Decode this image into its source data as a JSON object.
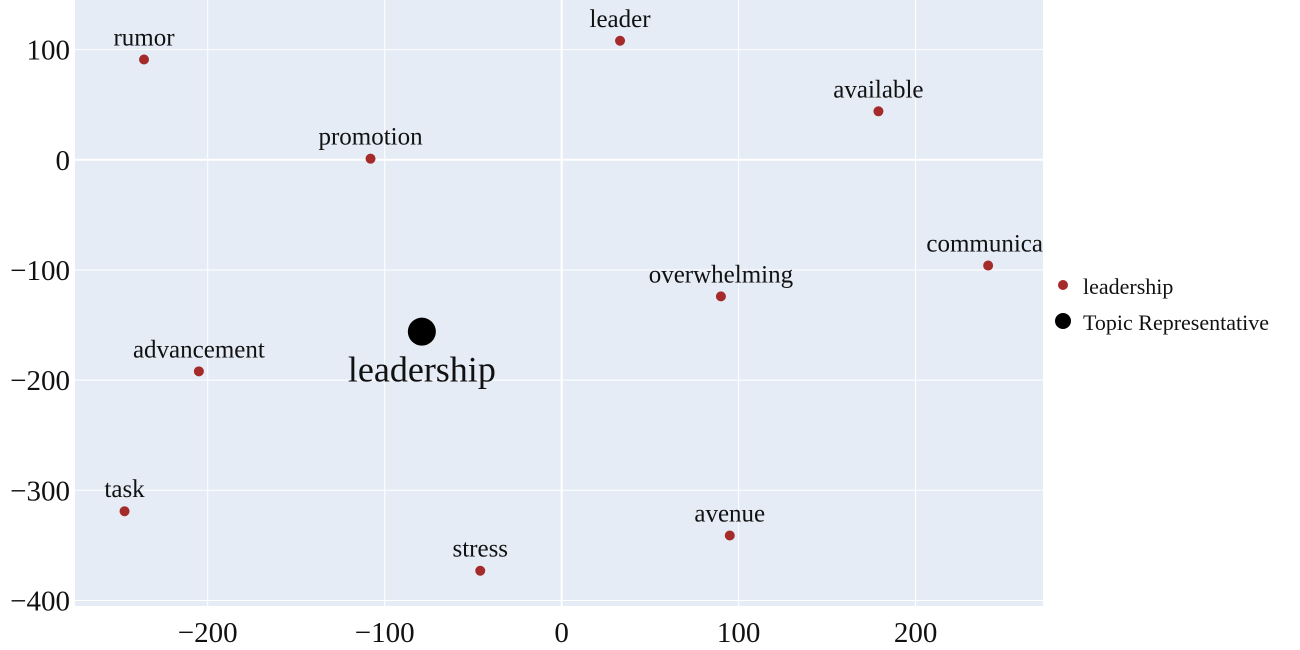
{
  "chart_data": {
    "type": "scatter",
    "title": "",
    "xlabel": "",
    "ylabel": "",
    "xlim": [
      -275,
      272
    ],
    "ylim": [
      -405,
      145
    ],
    "grid": true,
    "background": "#e5ecf6",
    "x_ticks": [
      -200,
      -100,
      0,
      100,
      200
    ],
    "y_ticks": [
      100,
      0,
      -100,
      -200,
      -300,
      -400
    ],
    "x_tick_labels": [
      "−200",
      "−100",
      "0",
      "100",
      "200"
    ],
    "y_tick_labels": [
      "100",
      "0",
      "−100",
      "−200",
      "−300",
      "−400"
    ],
    "legend_position": "right",
    "series": [
      {
        "name": "leadership",
        "color": "#a52a2a",
        "points": [
          {
            "label": "rumor",
            "x": -236,
            "y": 91
          },
          {
            "label": "leader",
            "x": 33,
            "y": 108
          },
          {
            "label": "available",
            "x": 179,
            "y": 44
          },
          {
            "label": "promotion",
            "x": -108,
            "y": 1
          },
          {
            "label": "communicat",
            "x": 241,
            "y": -96
          },
          {
            "label": "overwhelming",
            "x": 90,
            "y": -124
          },
          {
            "label": "advancement",
            "x": -205,
            "y": -192
          },
          {
            "label": "task",
            "x": -247,
            "y": -319
          },
          {
            "label": "avenue",
            "x": 95,
            "y": -341
          },
          {
            "label": "stress",
            "x": -46,
            "y": -373
          }
        ]
      },
      {
        "name": "Topic Representative",
        "color": "#000000",
        "points": [
          {
            "label": "leadership",
            "x": -79,
            "y": -156
          }
        ]
      }
    ]
  }
}
